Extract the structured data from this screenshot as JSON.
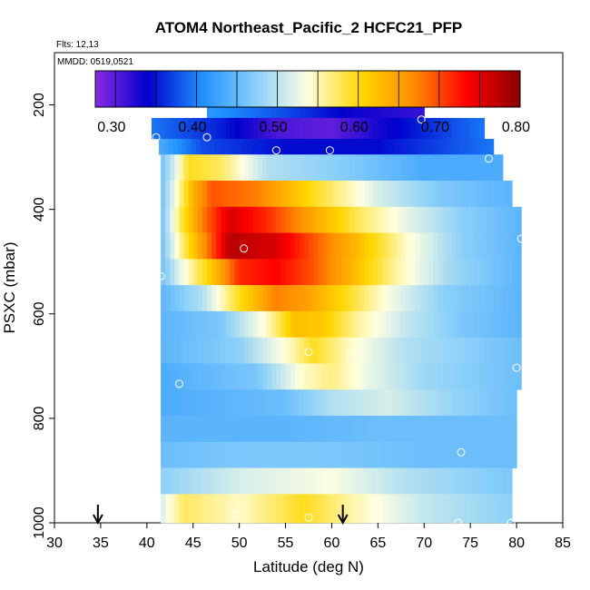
{
  "chart_data": {
    "type": "heatmap",
    "title": "ATOM4 Northeast_Pacific_2 HCFC21_PFP",
    "annotations": {
      "flights": "Flts: 12,13",
      "dates": "MMDD: 0519,0521"
    },
    "xlabel": "Latitude (deg N)",
    "ylabel": "PSXC (mbar)",
    "xlim": [
      30,
      85
    ],
    "ylim": [
      1000,
      100
    ],
    "y_reversed": true,
    "x_ticks": [
      "30",
      "35",
      "40",
      "45",
      "50",
      "55",
      "60",
      "65",
      "70",
      "75",
      "80",
      "85"
    ],
    "y_ticks": [
      "200",
      "400",
      "600",
      "800",
      "1000"
    ],
    "colorbar": {
      "range": [
        0.28,
        0.805
      ],
      "tick_labels": [
        "0.30",
        "0.40",
        "0.50",
        "0.60",
        "0.70",
        "0.80"
      ],
      "tick_values": [
        0.3,
        0.4,
        0.5,
        0.6,
        0.7,
        0.8
      ],
      "colors": [
        "#8a2be2",
        "#0000cd",
        "#1e90ff",
        "#87cefa",
        "#ffffe0",
        "#ffd700",
        "#ff8c00",
        "#ff0000",
        "#8b0000"
      ]
    },
    "bands": [
      {
        "p": [
          180,
          225
        ],
        "lat": [
          46.5,
          70
        ],
        "pts": [
          [
            46.5,
            0.42
          ],
          [
            55,
            0.38
          ],
          [
            62,
            0.34
          ],
          [
            70,
            0.32
          ]
        ]
      },
      {
        "p": [
          225,
          265
        ],
        "lat": [
          40.5,
          76.5
        ],
        "pts": [
          [
            40.5,
            0.4
          ],
          [
            48,
            0.36
          ],
          [
            54,
            0.31
          ],
          [
            60,
            0.3
          ],
          [
            66,
            0.34
          ],
          [
            76.5,
            0.4
          ]
        ]
      },
      {
        "p": [
          265,
          295
        ],
        "lat": [
          41.3,
          77.5
        ],
        "pts": [
          [
            41.3,
            0.44
          ],
          [
            46,
            0.38
          ],
          [
            55,
            0.35
          ],
          [
            65,
            0.35
          ],
          [
            77.5,
            0.4
          ]
        ]
      },
      {
        "p": [
          295,
          345
        ],
        "lat": [
          41.5,
          78.5
        ],
        "pts": [
          [
            41.5,
            0.46
          ],
          [
            43,
            0.52
          ],
          [
            44.5,
            0.6
          ],
          [
            48,
            0.58
          ],
          [
            53,
            0.5
          ],
          [
            60,
            0.48
          ],
          [
            70,
            0.44
          ],
          [
            78.5,
            0.44
          ]
        ]
      },
      {
        "p": [
          345,
          395
        ],
        "lat": [
          41.5,
          79.5
        ],
        "pts": [
          [
            41.5,
            0.46
          ],
          [
            43.5,
            0.56
          ],
          [
            45,
            0.64
          ],
          [
            47,
            0.7
          ],
          [
            52,
            0.68
          ],
          [
            58,
            0.6
          ],
          [
            65,
            0.52
          ],
          [
            72,
            0.47
          ],
          [
            79.5,
            0.45
          ]
        ]
      },
      {
        "p": [
          395,
          445
        ],
        "lat": [
          41.5,
          80.5
        ],
        "pts": [
          [
            41.5,
            0.46
          ],
          [
            44,
            0.6
          ],
          [
            46,
            0.68
          ],
          [
            49,
            0.76
          ],
          [
            53,
            0.72
          ],
          [
            58,
            0.65
          ],
          [
            63,
            0.58
          ],
          [
            68,
            0.53
          ],
          [
            74,
            0.48
          ],
          [
            80.5,
            0.45
          ]
        ]
      },
      {
        "p": [
          445,
          495
        ],
        "lat": [
          41.5,
          80.5
        ],
        "pts": [
          [
            41.5,
            0.46
          ],
          [
            44,
            0.58
          ],
          [
            46,
            0.66
          ],
          [
            49,
            0.78
          ],
          [
            54,
            0.76
          ],
          [
            58,
            0.7
          ],
          [
            63,
            0.63
          ],
          [
            68,
            0.55
          ],
          [
            74,
            0.48
          ],
          [
            80.5,
            0.45
          ]
        ]
      },
      {
        "p": [
          495,
          545
        ],
        "lat": [
          41.5,
          80.5
        ],
        "pts": [
          [
            41.5,
            0.46
          ],
          [
            44,
            0.54
          ],
          [
            47,
            0.62
          ],
          [
            50,
            0.72
          ],
          [
            54,
            0.74
          ],
          [
            58,
            0.7
          ],
          [
            62,
            0.64
          ],
          [
            67,
            0.56
          ],
          [
            73,
            0.49
          ],
          [
            80.5,
            0.45
          ]
        ]
      },
      {
        "p": [
          545,
          595
        ],
        "lat": [
          41.5,
          80.5
        ],
        "pts": [
          [
            41.5,
            0.45
          ],
          [
            46,
            0.5
          ],
          [
            50,
            0.6
          ],
          [
            54,
            0.68
          ],
          [
            57,
            0.66
          ],
          [
            61,
            0.61
          ],
          [
            66,
            0.54
          ],
          [
            72,
            0.48
          ],
          [
            80.5,
            0.45
          ]
        ]
      },
      {
        "p": [
          595,
          645
        ],
        "lat": [
          41.5,
          80.5
        ],
        "pts": [
          [
            41.5,
            0.45
          ],
          [
            48,
            0.47
          ],
          [
            53,
            0.55
          ],
          [
            56,
            0.63
          ],
          [
            59,
            0.62
          ],
          [
            63,
            0.56
          ],
          [
            68,
            0.51
          ],
          [
            74,
            0.47
          ],
          [
            80.5,
            0.45
          ]
        ]
      },
      {
        "p": [
          645,
          695
        ],
        "lat": [
          41.5,
          80.5
        ],
        "pts": [
          [
            41.5,
            0.45
          ],
          [
            50,
            0.48
          ],
          [
            56,
            0.56
          ],
          [
            58,
            0.6
          ],
          [
            62,
            0.55
          ],
          [
            68,
            0.5
          ],
          [
            80.5,
            0.46
          ]
        ]
      },
      {
        "p": [
          695,
          745
        ],
        "lat": [
          41.5,
          80.5
        ],
        "pts": [
          [
            41.5,
            0.44
          ],
          [
            52,
            0.47
          ],
          [
            57,
            0.55
          ],
          [
            60,
            0.57
          ],
          [
            64,
            0.53
          ],
          [
            70,
            0.49
          ],
          [
            80.5,
            0.46
          ]
        ]
      },
      {
        "p": [
          745,
          795
        ],
        "lat": [
          41.5,
          80
        ],
        "pts": [
          [
            41.5,
            0.44
          ],
          [
            55,
            0.46
          ],
          [
            60,
            0.5
          ],
          [
            66,
            0.52
          ],
          [
            72,
            0.49
          ],
          [
            80,
            0.46
          ]
        ]
      },
      {
        "p": [
          795,
          845
        ],
        "lat": [
          41.5,
          80
        ],
        "pts": [
          [
            41.5,
            0.45
          ],
          [
            55,
            0.45
          ],
          [
            65,
            0.46
          ],
          [
            80,
            0.46
          ]
        ]
      },
      {
        "p": [
          845,
          895
        ],
        "lat": [
          41.5,
          80
        ],
        "pts": [
          [
            41.5,
            0.46
          ],
          [
            50,
            0.47
          ],
          [
            60,
            0.47
          ],
          [
            70,
            0.46
          ],
          [
            80,
            0.46
          ]
        ]
      },
      {
        "p": [
          895,
          945
        ],
        "lat": [
          41.5,
          79.5
        ],
        "pts": [
          [
            41.5,
            0.48
          ],
          [
            50,
            0.52
          ],
          [
            60,
            0.54
          ],
          [
            68,
            0.5
          ],
          [
            79.5,
            0.47
          ]
        ]
      },
      {
        "p": [
          945,
          1000
        ],
        "lat": [
          41.5,
          79.5
        ],
        "pts": [
          [
            41.5,
            0.52
          ],
          [
            44,
            0.58
          ],
          [
            50,
            0.55
          ],
          [
            57,
            0.6
          ],
          [
            62,
            0.56
          ],
          [
            70,
            0.51
          ],
          [
            79.5,
            0.48
          ]
        ]
      }
    ],
    "sample_points": [
      [
        69.7,
        228
      ],
      [
        46.5,
        262
      ],
      [
        41,
        262
      ],
      [
        54,
        287
      ],
      [
        59.8,
        287
      ],
      [
        77,
        303
      ],
      [
        80.5,
        456
      ],
      [
        50.5,
        475
      ],
      [
        41.5,
        528
      ],
      [
        57.5,
        673
      ],
      [
        62,
        680
      ],
      [
        43.5,
        734
      ],
      [
        80,
        703
      ],
      [
        74,
        865
      ],
      [
        49.5,
        985
      ],
      [
        57.5,
        990
      ],
      [
        73.7,
        1000
      ],
      [
        79.4,
        1000
      ]
    ],
    "arrows_lat": [
      34.7,
      61.2
    ]
  }
}
